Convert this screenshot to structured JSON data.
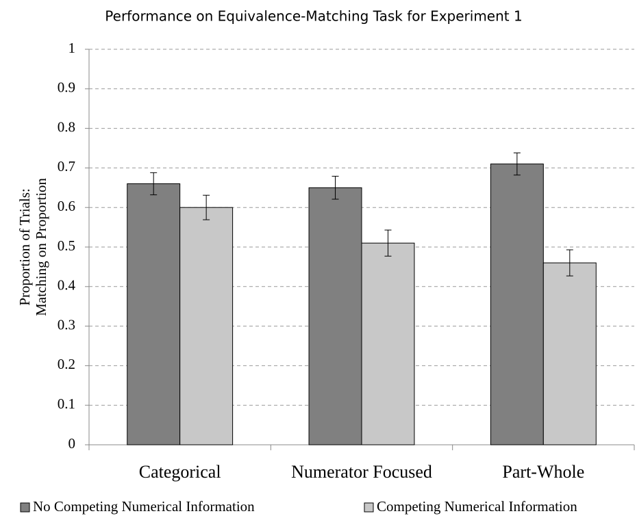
{
  "chart_data": {
    "type": "bar",
    "title": "Performance on Equivalence-Matching Task for Experiment 1",
    "ylabel": [
      "Proportion of Trials:",
      "Matching on Proportion"
    ],
    "categories": [
      "Categorical",
      "Numerator Focused",
      "Part-Whole"
    ],
    "series": [
      {
        "name": "No Competing Numerical Information",
        "color": "#808080",
        "values": [
          0.66,
          0.65,
          0.71
        ],
        "errors": [
          0.028,
          0.029,
          0.028
        ]
      },
      {
        "name": "Competing Numerical Information",
        "color": "#c8c8c8",
        "values": [
          0.6,
          0.51,
          0.46
        ],
        "errors": [
          0.031,
          0.033,
          0.033
        ]
      }
    ],
    "ylim": [
      0,
      1
    ],
    "yticks": [
      0,
      0.1,
      0.2,
      0.3,
      0.4,
      0.5,
      0.6,
      0.7,
      0.8,
      0.9,
      1
    ],
    "grid": true,
    "legend": "bottom"
  }
}
